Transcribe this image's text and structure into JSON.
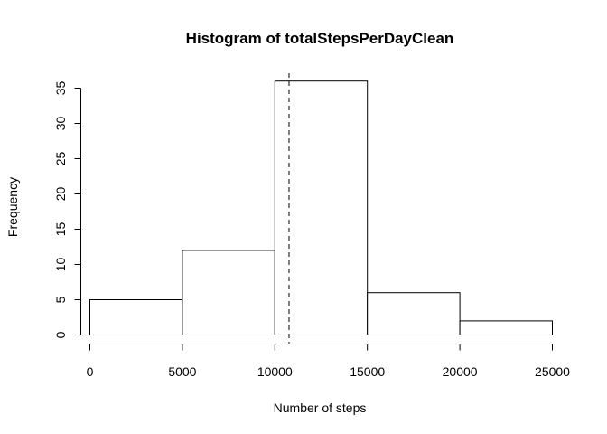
{
  "chart_data": {
    "type": "bar",
    "title": "Histogram of totalStepsPerDayClean",
    "xlabel": "Number of steps",
    "ylabel": "Frequency",
    "bins": [
      {
        "from": 0,
        "to": 5000,
        "count": 5
      },
      {
        "from": 5000,
        "to": 10000,
        "count": 12
      },
      {
        "from": 10000,
        "to": 15000,
        "count": 36
      },
      {
        "from": 15000,
        "to": 20000,
        "count": 6
      },
      {
        "from": 20000,
        "to": 25000,
        "count": 2
      }
    ],
    "xlim": [
      0,
      25000
    ],
    "ylim": [
      0,
      35
    ],
    "x_ticks": [
      0,
      5000,
      10000,
      15000,
      20000,
      25000
    ],
    "y_ticks": [
      0,
      5,
      10,
      15,
      20,
      25,
      30,
      35
    ],
    "reference_line": {
      "x": 10766,
      "style": "dashed"
    },
    "grid": false,
    "colors": {
      "bar_fill": "#ffffff",
      "bar_stroke": "#000000"
    }
  }
}
